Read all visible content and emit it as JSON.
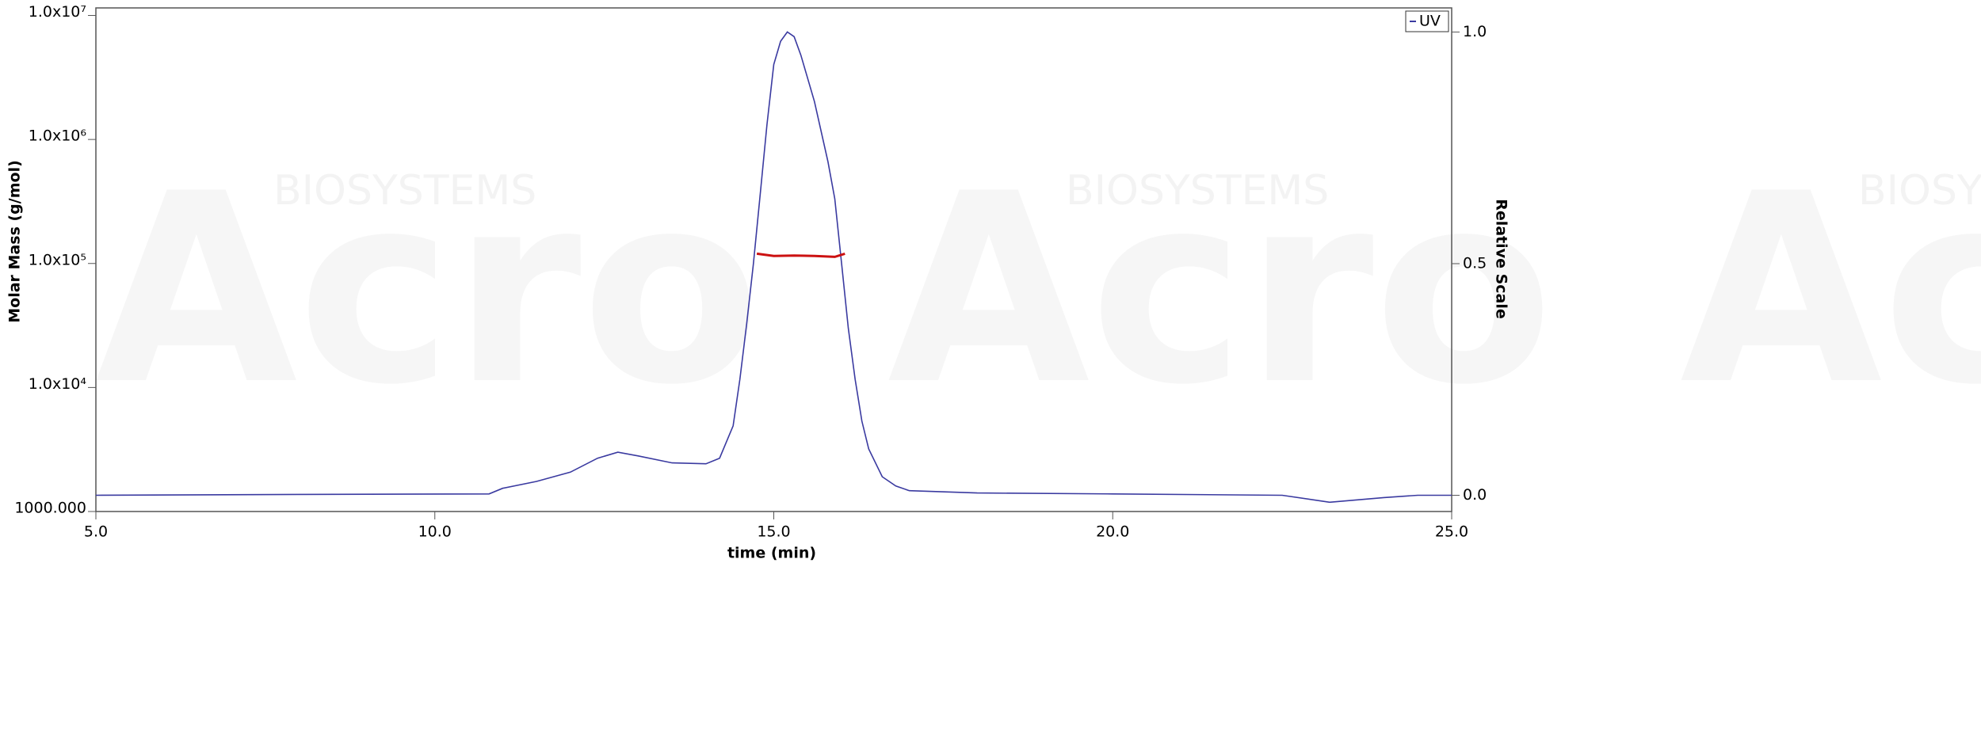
{
  "watermark": {
    "logo": "Acro",
    "brand": "BIOSYSTEMS"
  },
  "chart_data": {
    "type": "line",
    "x_label": "time (min)",
    "y_label": "Molar Mass (g/mol)",
    "y2_label": "Relative Scale",
    "xlim": [
      5,
      25
    ],
    "xticks": [
      {
        "value": 5,
        "label": "5.0"
      },
      {
        "value": 10,
        "label": "10.0"
      },
      {
        "value": 15,
        "label": "15.0"
      },
      {
        "value": 20,
        "label": "20.0"
      },
      {
        "value": 25,
        "label": "25.0"
      }
    ],
    "ylim": [
      1000,
      11500000
    ],
    "ylog": true,
    "yticks": [
      {
        "value": 1000,
        "label": "1000.000"
      },
      {
        "value": 10000,
        "label": "1.0x10⁴"
      },
      {
        "value": 100000,
        "label": "1.0x10⁵"
      },
      {
        "value": 1000000,
        "label": "1.0x10⁶"
      },
      {
        "value": 10000000,
        "label": "1.0x10⁷"
      }
    ],
    "y2lim": [
      -0.035,
      1.052
    ],
    "y2ticks": [
      {
        "value": 0,
        "label": "0.0"
      },
      {
        "value": 0.5,
        "label": "0.5"
      },
      {
        "value": 1,
        "label": "1.0"
      }
    ],
    "legend": "upper right",
    "series": [
      {
        "name": "UV",
        "color": "#3a3aa0",
        "axis": "y2",
        "in_legend": true,
        "x": [
          5,
          8,
          10.8,
          11,
          11.5,
          12,
          12.4,
          12.7,
          13,
          13.5,
          14,
          14.2,
          14.4,
          14.5,
          14.6,
          14.7,
          14.8,
          14.9,
          15,
          15.1,
          15.2,
          15.3,
          15.4,
          15.6,
          15.8,
          15.9,
          16,
          16.1,
          16.2,
          16.3,
          16.4,
          16.6,
          16.8,
          17,
          18,
          20,
          22.5,
          23.2,
          24,
          24.5,
          25
        ],
        "values": [
          0,
          0.002,
          0.003,
          0.015,
          0.03,
          0.05,
          0.08,
          0.093,
          0.085,
          0.07,
          0.068,
          0.08,
          0.15,
          0.25,
          0.37,
          0.5,
          0.65,
          0.8,
          0.93,
          0.98,
          1.0,
          0.99,
          0.95,
          0.85,
          0.72,
          0.64,
          0.5,
          0.36,
          0.25,
          0.16,
          0.1,
          0.04,
          0.02,
          0.01,
          0.005,
          0.003,
          0,
          -0.015,
          -0.005,
          0,
          0
        ]
      },
      {
        "color": "#cc1111",
        "axis": "y",
        "x": [
          14.75,
          15,
          15.3,
          15.6,
          15.9,
          16.05
        ],
        "values": [
          120000,
          115000,
          116000,
          115000,
          113000,
          120000
        ]
      }
    ]
  }
}
